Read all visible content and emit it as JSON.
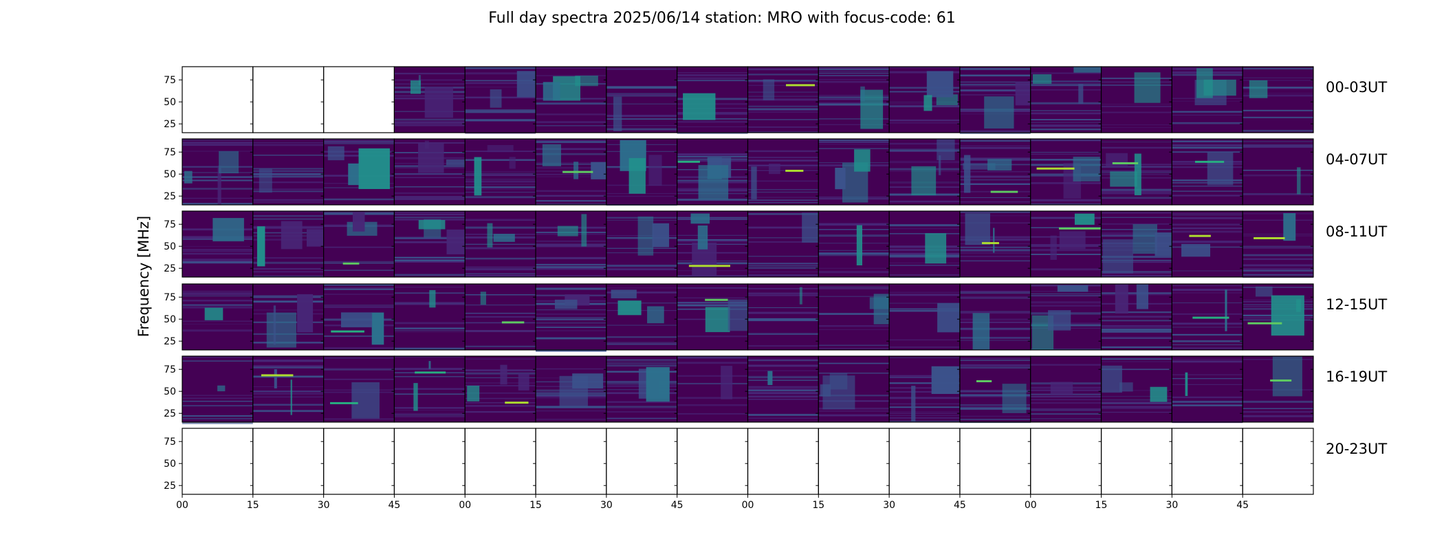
{
  "chart_data": {
    "type": "heatmap",
    "title": "Full day spectra 2025/06/14 station: MRO with focus-code: 61",
    "ylabel": "Frequency [MHz]",
    "xlabel": "",
    "ylim": [
      15,
      90
    ],
    "y_ticks": [
      "25",
      "50",
      "75"
    ],
    "x_ticks": [
      "00",
      "15",
      "30",
      "45",
      "00",
      "15",
      "30",
      "45",
      "00",
      "15",
      "30",
      "45",
      "00",
      "15",
      "30",
      "45"
    ],
    "rows": [
      "00-03UT",
      "04-07UT",
      "08-11UT",
      "12-15UT",
      "16-19UT",
      "20-23UT"
    ],
    "panels_per_row": 16,
    "colormap": [
      "#440154",
      "#482677",
      "#3b528b",
      "#2c728e",
      "#21918c",
      "#28ae80",
      "#5ec962",
      "#addc30",
      "#fde725"
    ],
    "empty_panels": {
      "00-03UT": [
        0,
        1,
        2
      ],
      "20-23UT": [
        0,
        1,
        2,
        3,
        4,
        5,
        6,
        7,
        8,
        9,
        10,
        11,
        12,
        13,
        14,
        15
      ]
    },
    "grid": false
  }
}
